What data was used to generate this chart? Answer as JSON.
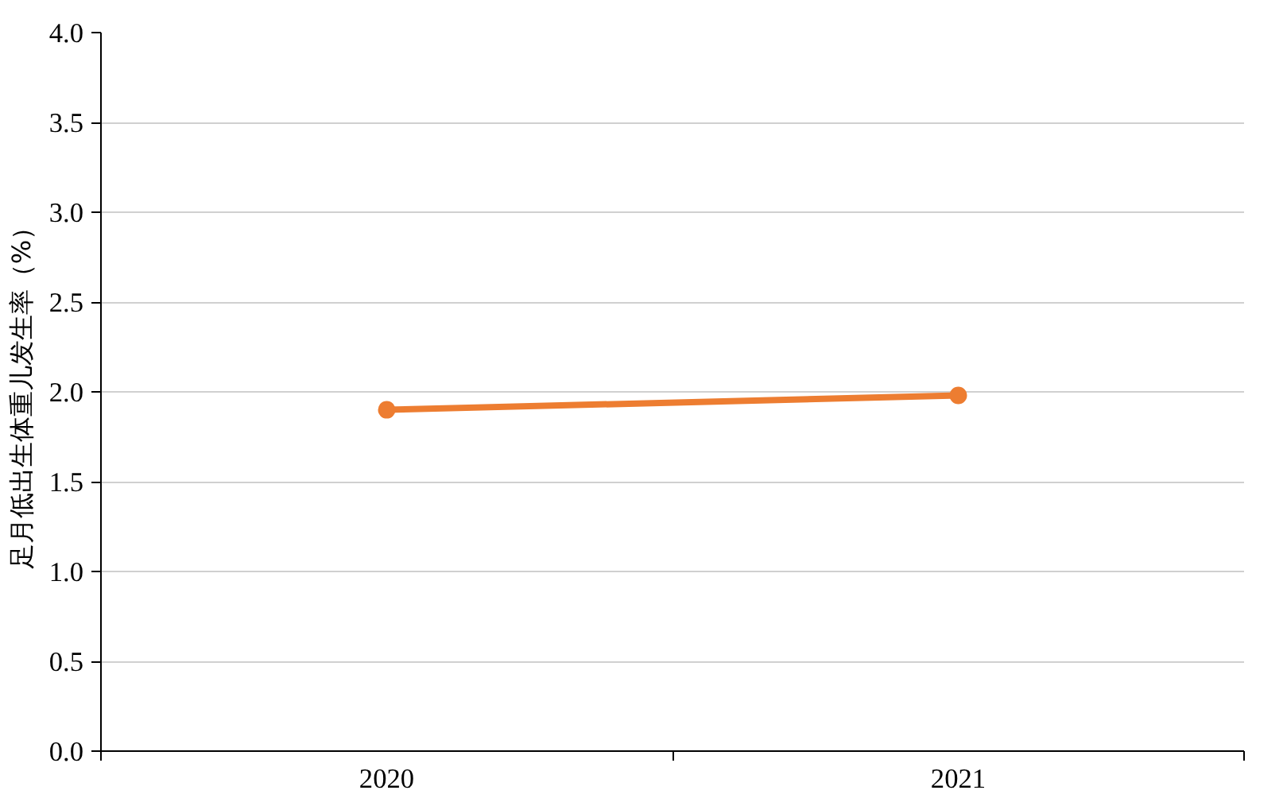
{
  "chart_data": {
    "type": "line",
    "ylabel": "足月低出生体重儿发生率（%）",
    "categories": [
      "2020",
      "2021"
    ],
    "series": [
      {
        "color": "#ed7d31",
        "values": [
          1.9,
          1.98
        ]
      }
    ],
    "ylim": [
      0,
      4
    ],
    "yticks": [
      {
        "value": 0,
        "label": "0.0"
      },
      {
        "value": 0.5,
        "label": "0.5"
      },
      {
        "value": 1,
        "label": "1.0"
      },
      {
        "value": 1.5,
        "label": "1.5"
      },
      {
        "value": 2,
        "label": "2.0"
      },
      {
        "value": 2.5,
        "label": "2.5"
      },
      {
        "value": 3,
        "label": "3.0"
      },
      {
        "value": 3.5,
        "label": "3.5"
      },
      {
        "value": 4,
        "label": "4.0"
      }
    ],
    "grid": "y",
    "marker": "circle",
    "line_style": "solid"
  }
}
